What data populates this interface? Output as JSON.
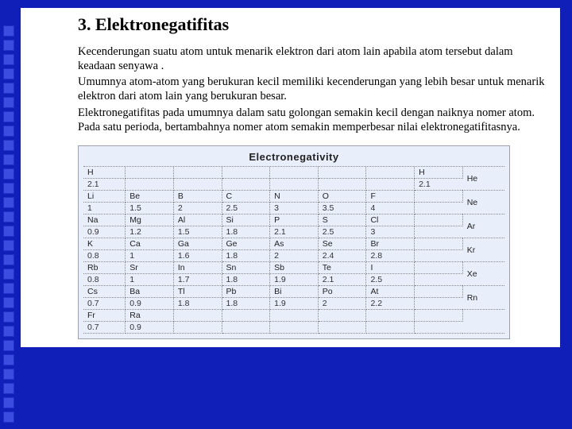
{
  "decor": {
    "count": 28,
    "square_color": "#3a4de0",
    "border_color": "#2030c8"
  },
  "slide": {
    "title": "3. Elektronegatifitas",
    "p1": "Kecenderungan suatu atom untuk menarik elektron dari atom lain apabila atom tersebut dalam keadaan senyawa .",
    "p2": "Umumnya atom-atom yang berukuran kecil memiliki kecenderungan yang lebih besar untuk menarik elektron dari atom lain yang berukuran besar.",
    "p3": "Elektronegatifitas pada umumnya dalam satu golongan semakin kecil dengan naiknya nomer atom. Pada satu perioda, bertambahnya nomer atom semakin memperbesar nilai elektronegatifitasnya."
  },
  "table": {
    "title": "Electronegativity",
    "title_fontsize": 13,
    "bg": "#e8eefa",
    "border_color": "#9aa0b0",
    "grid_color": "#888888",
    "font": "Arial",
    "cell_fontsize": 10.5,
    "columns": 9,
    "rows": [
      {
        "sym": [
          "H",
          "",
          "",
          "",
          "",
          "",
          "",
          "H"
        ],
        "val": [
          "2.1",
          "",
          "",
          "",
          "",
          "",
          "",
          "2.1"
        ],
        "noble": "He",
        "noble_in_sym_row": true
      },
      {
        "sym": [
          "Li",
          "Be",
          "B",
          "C",
          "N",
          "O",
          "F",
          ""
        ],
        "val": [
          "1",
          "1.5",
          "2",
          "2.5",
          "3",
          "3.5",
          "4",
          ""
        ],
        "noble": "Ne"
      },
      {
        "sym": [
          "Na",
          "Mg",
          "Al",
          "Si",
          "P",
          "S",
          "Cl",
          ""
        ],
        "val": [
          "0.9",
          "1.2",
          "1.5",
          "1.8",
          "2.1",
          "2.5",
          "3",
          ""
        ],
        "noble": "Ar"
      },
      {
        "sym": [
          "K",
          "Ca",
          "Ga",
          "Ge",
          "As",
          "Se",
          "Br",
          ""
        ],
        "val": [
          "0.8",
          "1",
          "1.6",
          "1.8",
          "2",
          "2.4",
          "2.8",
          ""
        ],
        "noble": "Kr"
      },
      {
        "sym": [
          "Rb",
          "Sr",
          "In",
          "Sn",
          "Sb",
          "Te",
          "I",
          ""
        ],
        "val": [
          "0.8",
          "1",
          "1.7",
          "1.8",
          "1.9",
          "2.1",
          "2.5",
          ""
        ],
        "noble": "Xe"
      },
      {
        "sym": [
          "Cs",
          "Ba",
          "Tl",
          "Pb",
          "Bi",
          "Po",
          "At",
          ""
        ],
        "val": [
          "0.7",
          "0.9",
          "1.8",
          "1.8",
          "1.9",
          "2",
          "2.2",
          ""
        ],
        "noble": "Rn"
      },
      {
        "sym": [
          "Fr",
          "Ra",
          "",
          "",
          "",
          "",
          "",
          ""
        ],
        "val": [
          "0.7",
          "0.9",
          "",
          "",
          "",
          "",
          "",
          ""
        ],
        "noble": ""
      }
    ]
  }
}
